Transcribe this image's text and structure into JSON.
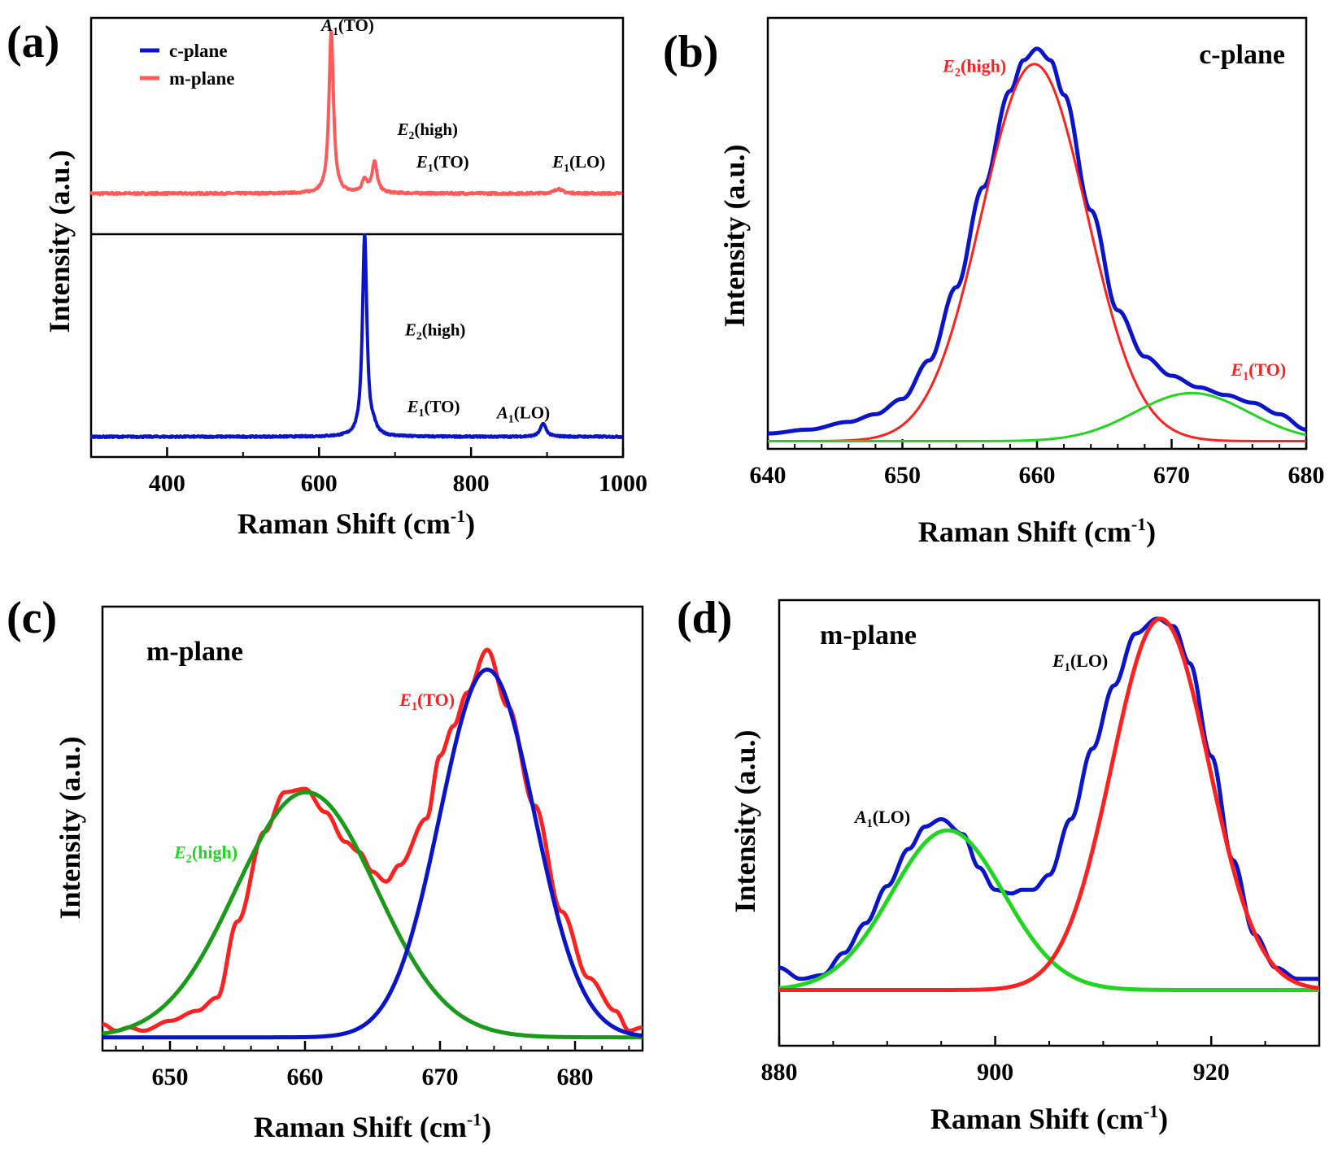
{
  "figure": {
    "colors": {
      "blue": "#0a14c8",
      "red": "#ff2020",
      "red_light": "#ff5a5a",
      "green": "#22d522",
      "green_dark": "#1a9a1a",
      "axis": "#000000"
    }
  },
  "chart_data": [
    {
      "panel": "(a)",
      "type": "line",
      "layout": "stacked (m-plane top, c-plane bottom)",
      "title": "",
      "xlabel": "Raman Shift (cm",
      "xlabel_sup": "-1",
      "xlabel_end": ")",
      "ylabel": "Intensity (a.u.)",
      "xlim": [
        300,
        1000
      ],
      "xticks": [
        "400",
        "600",
        "800",
        "1000"
      ],
      "legend": {
        "position": "top-left",
        "entries": [
          {
            "name": "c-plane",
            "color": "#0a14c8"
          },
          {
            "name": "m-plane",
            "color": "#ff5a5a"
          }
        ]
      },
      "series": [
        {
          "name": "m-plane",
          "color": "#ff5a5a",
          "baseline": 0,
          "noise": 0.006,
          "peaks": [
            {
              "center": 616,
              "amp": 1.0,
              "width": 3.5
            },
            {
              "center": 660,
              "amp": 0.08,
              "width": 4
            },
            {
              "center": 673,
              "amp": 0.19,
              "width": 4
            },
            {
              "center": 915,
              "amp": 0.03,
              "width": 6
            }
          ],
          "ylim": [
            -0.25,
            1.08
          ]
        },
        {
          "name": "c-plane",
          "color": "#0a14c8",
          "baseline": 0,
          "noise": 0.004,
          "peaks": [
            {
              "center": 660,
              "amp": 1.0,
              "width": 3.5
            },
            {
              "center": 672,
              "amp": 0.03,
              "width": 4
            },
            {
              "center": 895,
              "amp": 0.065,
              "width": 4.5
            }
          ],
          "ylim": [
            -0.1,
            1.0
          ]
        }
      ],
      "annotations": [
        {
          "text": "A",
          "sub": "1",
          "rest": "(TO)",
          "x": 603,
          "y": 1.0,
          "series": "m-plane",
          "color": "#000000"
        },
        {
          "text": "E",
          "sub": "2",
          "rest": "(high)",
          "x": 703,
          "y": 0.36,
          "series": "m-plane",
          "color": "#000000"
        },
        {
          "text": "E",
          "sub": "1",
          "rest": "(TO)",
          "x": 728,
          "y": 0.16,
          "series": "m-plane",
          "color": "#000000"
        },
        {
          "text": "E",
          "sub": "1",
          "rest": "(LO)",
          "x": 907,
          "y": 0.16,
          "series": "m-plane",
          "color": "#000000"
        },
        {
          "text": "E",
          "sub": "2",
          "rest": "(high)",
          "x": 713,
          "y": 0.5,
          "series": "c-plane",
          "color": "#000000"
        },
        {
          "text": "E",
          "sub": "1",
          "rest": "(TO)",
          "x": 716,
          "y": 0.12,
          "series": "c-plane",
          "color": "#000000"
        },
        {
          "text": "A",
          "sub": "1",
          "rest": "(LO)",
          "x": 834,
          "y": 0.09,
          "series": "c-plane",
          "color": "#000000"
        }
      ]
    },
    {
      "panel": "(b)",
      "type": "line",
      "title": "c-plane",
      "xlabel": "Raman Shift (cm",
      "xlabel_sup": "-1",
      "xlabel_end": ")",
      "ylabel": "Intensity (a.u.)",
      "xlim": [
        640,
        680
      ],
      "ylim": [
        -0.02,
        1.1
      ],
      "xticks": [
        "640",
        "650",
        "660",
        "670",
        "680"
      ],
      "series": [
        {
          "name": "measured",
          "color": "#0a14c8",
          "x": [
            640,
            643,
            646,
            648,
            650,
            652,
            654,
            656,
            658,
            659,
            660,
            661,
            662,
            664,
            666,
            668,
            670,
            672,
            674,
            676,
            678,
            680
          ],
          "y": [
            0.02,
            0.03,
            0.05,
            0.07,
            0.11,
            0.21,
            0.4,
            0.66,
            0.91,
            0.99,
            1.02,
            0.99,
            0.9,
            0.6,
            0.34,
            0.22,
            0.17,
            0.14,
            0.12,
            0.1,
            0.07,
            0.03
          ]
        },
        {
          "name": "E2(high) fit",
          "color": "#ff2020",
          "model": "gaussian",
          "center": 659.8,
          "amp": 0.98,
          "sigma": 3.9
        },
        {
          "name": "E1(TO) fit",
          "color": "#22d522",
          "model": "gaussian",
          "center": 671.5,
          "amp": 0.125,
          "sigma": 4.2
        }
      ],
      "annotations": [
        {
          "text": "E",
          "sub": "2",
          "rest": "(high)",
          "x": 653,
          "y": 0.96,
          "color": "#ff2020"
        },
        {
          "text": "E",
          "sub": "1",
          "rest": "(TO)",
          "x": 674.4,
          "y": 0.17,
          "color": "#ff2020"
        }
      ]
    },
    {
      "panel": "(c)",
      "type": "line",
      "title": "m-plane",
      "xlabel": "Raman Shift (cm",
      "xlabel_sup": "-1",
      "xlabel_end": ")",
      "ylabel": "Intensity (a.u.)",
      "xlim": [
        645,
        685
      ],
      "ylim": [
        -0.04,
        1.3
      ],
      "xticks": [
        "650",
        "660",
        "670",
        "680"
      ],
      "series": [
        {
          "name": "measured",
          "color": "#ff2020",
          "x": [
            645,
            646,
            647,
            648,
            650,
            652,
            653.5,
            655,
            657,
            658.5,
            660,
            661.5,
            663,
            664,
            665,
            666,
            667,
            669,
            670,
            671,
            672,
            673.5,
            675,
            677,
            679,
            681,
            683,
            684,
            685
          ],
          "y": [
            0.04,
            0.02,
            0.03,
            0.02,
            0.05,
            0.08,
            0.12,
            0.35,
            0.62,
            0.74,
            0.75,
            0.68,
            0.59,
            0.56,
            0.5,
            0.47,
            0.52,
            0.66,
            0.85,
            0.94,
            1.04,
            1.17,
            1.0,
            0.7,
            0.38,
            0.18,
            0.08,
            0.02,
            0.03
          ]
        },
        {
          "name": "E2(high) fit",
          "color": "#1a9a1a",
          "model": "gaussian",
          "center": 660.1,
          "amp": 0.74,
          "sigma": 5.2
        },
        {
          "name": "E1(TO) fit",
          "color": "#0a14c8",
          "model": "gaussian",
          "center": 673.5,
          "amp": 1.11,
          "sigma": 3.5
        }
      ],
      "annotations": [
        {
          "text": "E",
          "sub": "1",
          "rest": "(TO)",
          "x": 667,
          "y": 1.0,
          "color": "#ff2020"
        },
        {
          "text": "E",
          "sub": "2",
          "rest": "(high)",
          "x": 650.3,
          "y": 0.54,
          "color": "#22d522"
        }
      ]
    },
    {
      "panel": "(d)",
      "type": "line",
      "title": "m-plane",
      "xlabel": "Raman Shift (cm",
      "xlabel_sup": "-1",
      "xlabel_end": ")",
      "ylabel": "Intensity (a.u.)",
      "xlim": [
        880,
        930
      ],
      "ylim": [
        -0.15,
        1.05
      ],
      "xticks": [
        "880",
        "900",
        "920"
      ],
      "series": [
        {
          "name": "measured",
          "color": "#0a14c8",
          "x": [
            880,
            882,
            884,
            886,
            888,
            890,
            892,
            893.5,
            895,
            897,
            898.5,
            900,
            901.5,
            902.5,
            903.5,
            905,
            907,
            909,
            911,
            913,
            915,
            916.5,
            918,
            920,
            922,
            924,
            926,
            928,
            930
          ],
          "y": [
            0.06,
            0.03,
            0.04,
            0.1,
            0.18,
            0.28,
            0.38,
            0.44,
            0.46,
            0.42,
            0.33,
            0.27,
            0.26,
            0.27,
            0.27,
            0.31,
            0.46,
            0.65,
            0.82,
            0.96,
            1.0,
            0.98,
            0.88,
            0.63,
            0.35,
            0.15,
            0.06,
            0.03,
            0.03
          ]
        },
        {
          "name": "A1(LO) fit",
          "color": "#22d522",
          "model": "gaussian",
          "center": 895.6,
          "amp": 0.43,
          "sigma": 5.2
        },
        {
          "name": "E1(LO) fit",
          "color": "#ff2020",
          "model": "gaussian",
          "center": 915.3,
          "amp": 1.0,
          "sigma": 4.5
        }
      ],
      "annotations": [
        {
          "text": "E",
          "sub": "1",
          "rest": "(LO)",
          "x": 905.3,
          "y": 0.87,
          "color": "#000000"
        },
        {
          "text": "A",
          "sub": "1",
          "rest": "(LO)",
          "x": 887,
          "y": 0.45,
          "color": "#000000"
        }
      ]
    }
  ]
}
